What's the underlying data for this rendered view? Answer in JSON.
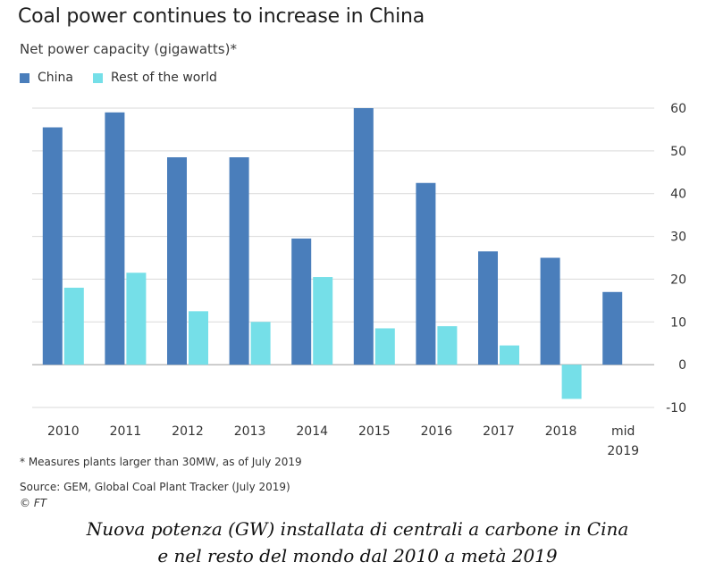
{
  "header": {
    "title": "Coal power continues to increase in China",
    "subtitle": "Net power capacity (gigawatts)*"
  },
  "legend": {
    "china": "China",
    "rest": "Rest of the world"
  },
  "colors": {
    "china": "#4a7ebb",
    "rest": "#75dfe8",
    "grid": "#d9d9d9",
    "axis_text": "#333333"
  },
  "chart_data": {
    "type": "bar",
    "title": "Coal power continues to increase in China",
    "subtitle": "Net power capacity (gigawatts)*",
    "categories": [
      "2010",
      "2011",
      "2012",
      "2013",
      "2014",
      "2015",
      "2016",
      "2017",
      "2018",
      "mid 2019"
    ],
    "category_lines": [
      [
        "2010"
      ],
      [
        "2011"
      ],
      [
        "2012"
      ],
      [
        "2013"
      ],
      [
        "2014"
      ],
      [
        "2015"
      ],
      [
        "2016"
      ],
      [
        "2017"
      ],
      [
        "2018"
      ],
      [
        "mid",
        "2019"
      ]
    ],
    "series": [
      {
        "name": "China",
        "values": [
          55.5,
          59,
          48.5,
          48.5,
          29.5,
          60,
          42.5,
          26.5,
          25,
          17
        ]
      },
      {
        "name": "Rest of the world",
        "values": [
          18,
          21.5,
          12.5,
          10,
          20.5,
          8.5,
          9,
          4.5,
          -8,
          null
        ]
      }
    ],
    "yticks": [
      60,
      50,
      40,
      30,
      20,
      10,
      0,
      -10
    ],
    "ylim": [
      -10,
      60
    ],
    "grid": true,
    "legend_position": "top-left",
    "y_axis_side": "right"
  },
  "footer": {
    "note": "* Measures plants larger than 30MW, as of July 2019",
    "source": "Source: GEM, Global Coal Plant Tracker (July 2019)",
    "credit": "© FT"
  },
  "caption": {
    "line1": "Nuova potenza (GW) installata di centrali a carbone in Cina",
    "line2": "e nel resto del mondo dal 2010 a metà 2019"
  }
}
